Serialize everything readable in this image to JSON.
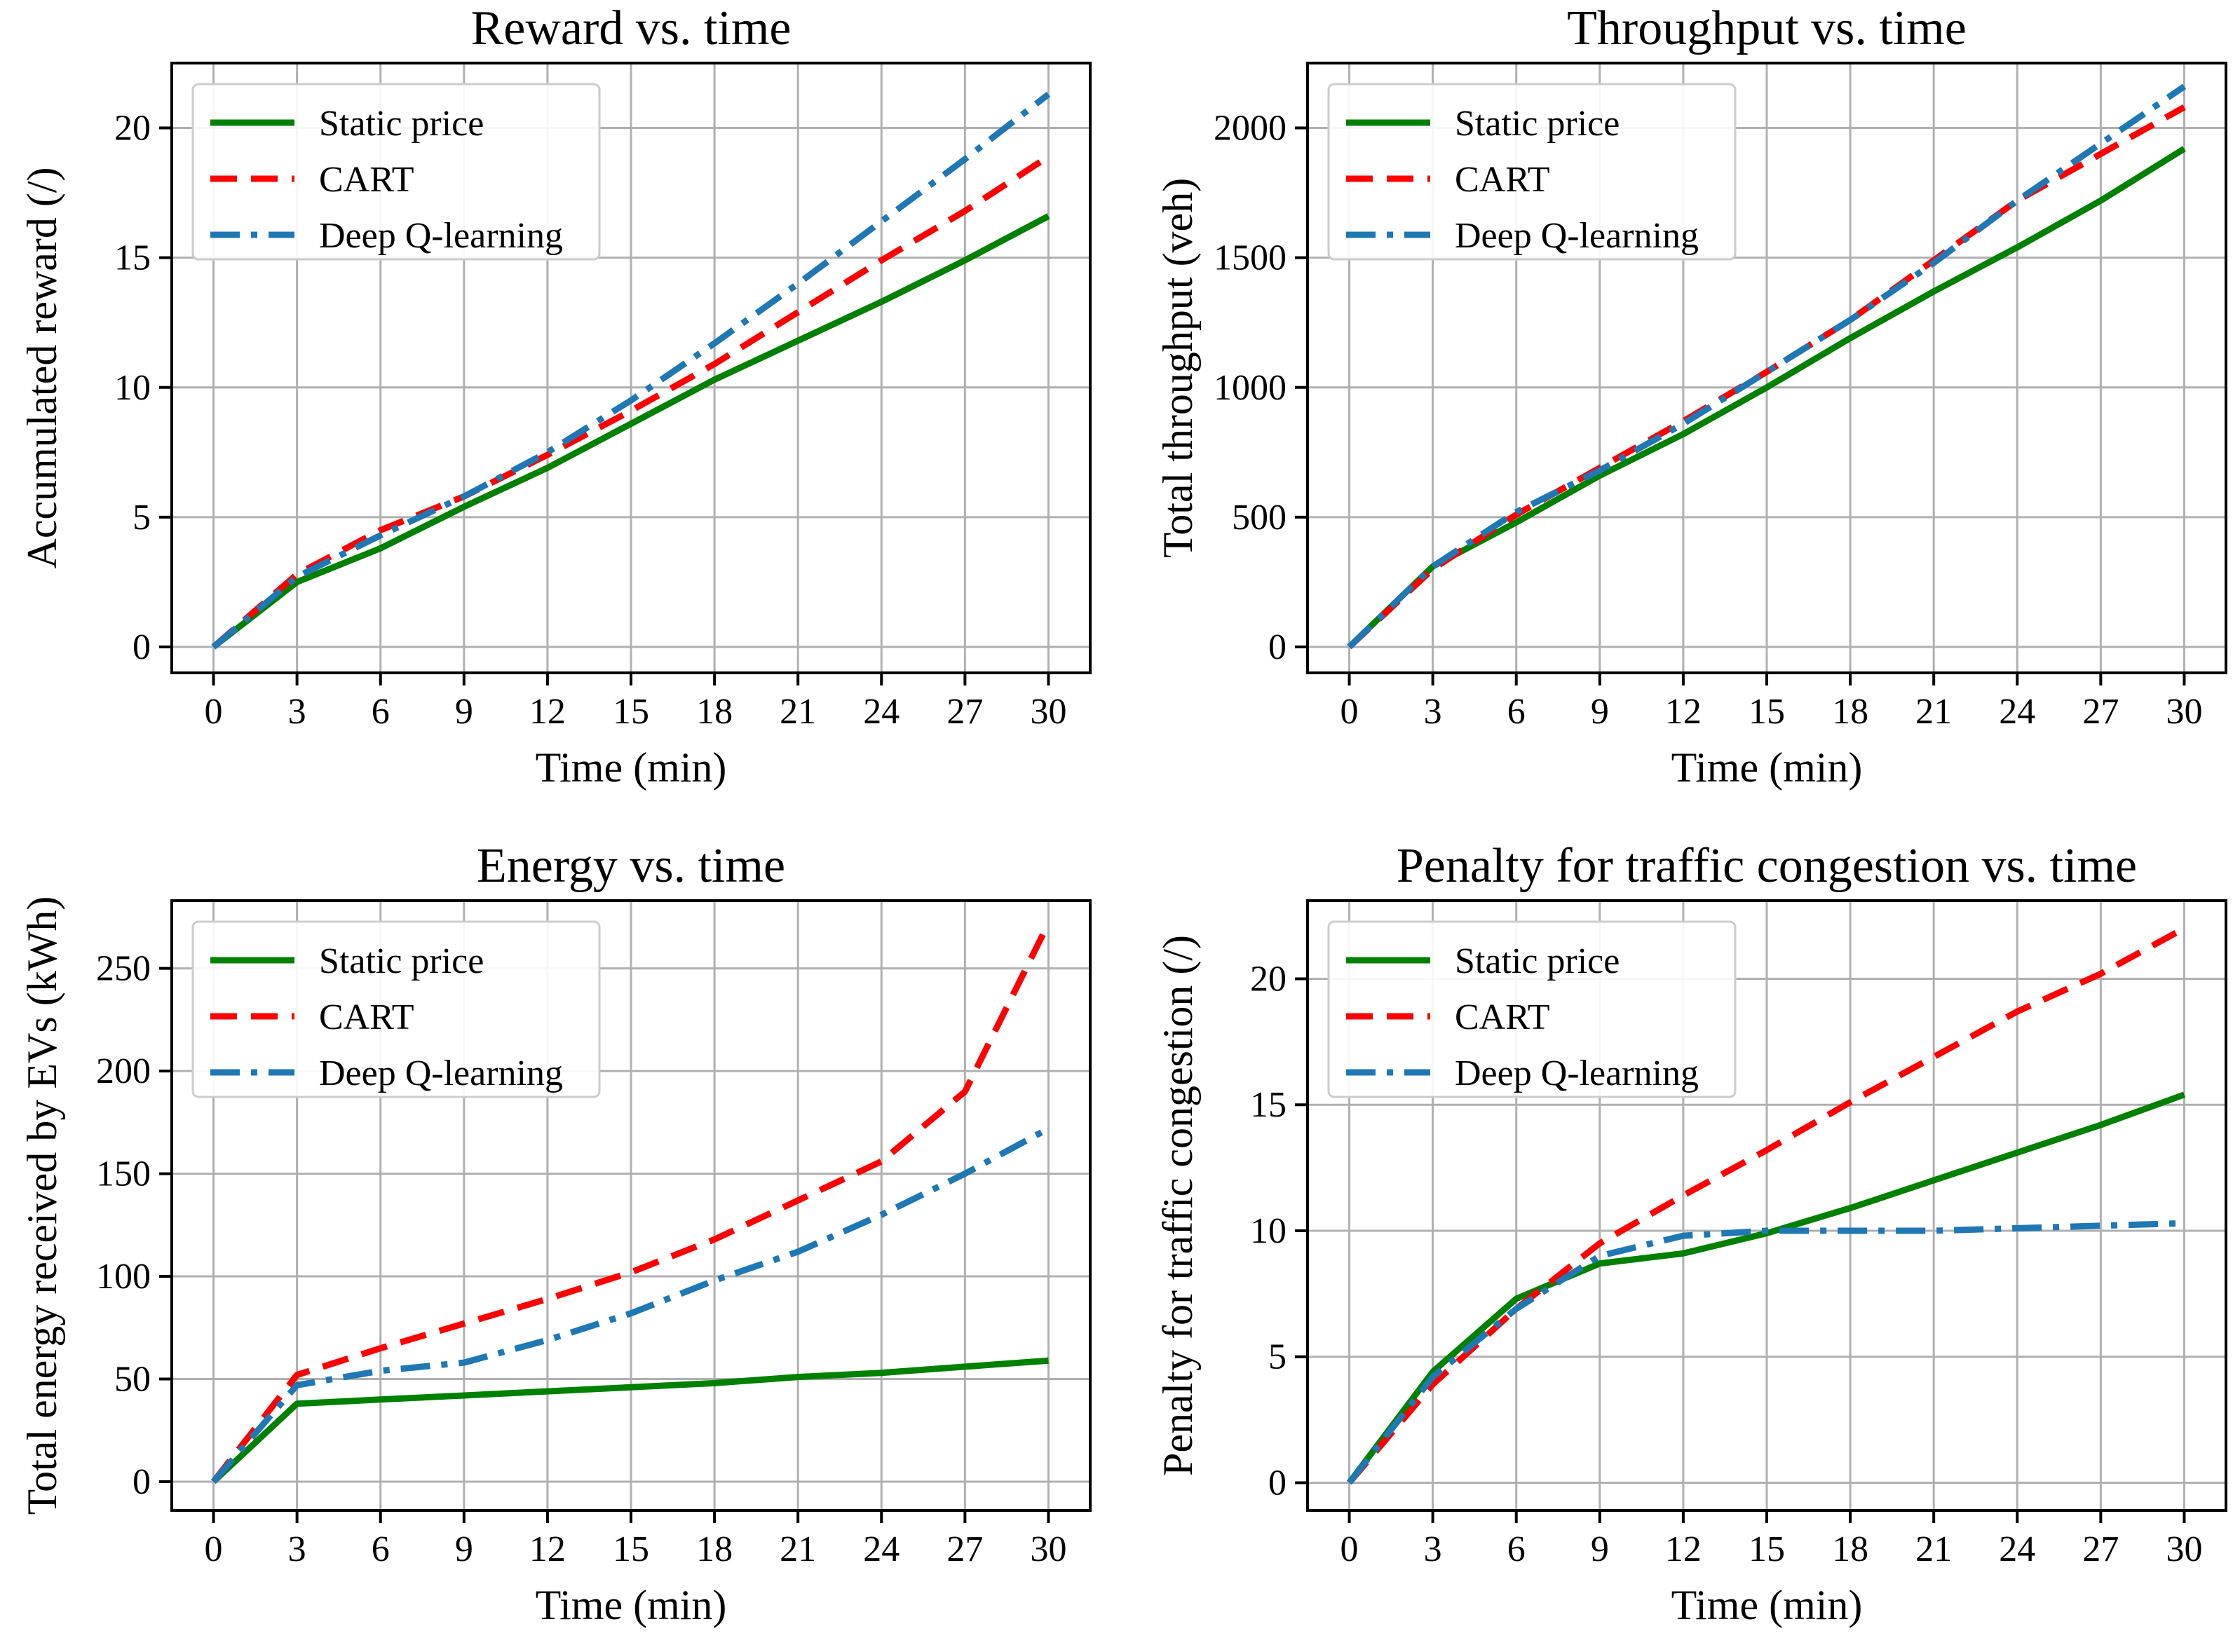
{
  "chart_data": [
    {
      "type": "line",
      "title": "Reward vs. time",
      "xlabel": "Time (min)",
      "ylabel": "Accumulated reward (/)",
      "xlim": [
        -1.5,
        31.5
      ],
      "ylim": [
        -1.0,
        22.5
      ],
      "xticks": [
        0,
        3,
        6,
        9,
        12,
        15,
        18,
        21,
        24,
        27,
        30
      ],
      "yticks": [
        0,
        5,
        10,
        15,
        20
      ],
      "grid": true,
      "legend": "upper left",
      "x": [
        0,
        3,
        6,
        9,
        12,
        15,
        18,
        21,
        24,
        27,
        30
      ],
      "series": [
        {
          "name": "Static price",
          "color": "#008000",
          "style": "solid",
          "values": [
            0,
            2.5,
            3.8,
            5.4,
            6.9,
            8.6,
            10.3,
            11.8,
            13.3,
            14.9,
            16.6
          ]
        },
        {
          "name": "CART",
          "color": "#ff0000",
          "style": "dashed",
          "values": [
            0,
            2.8,
            4.5,
            5.8,
            7.4,
            9.1,
            10.9,
            12.9,
            14.9,
            16.8,
            18.9
          ]
        },
        {
          "name": "Deep Q-learning",
          "color": "#1f77b4",
          "style": "dashdot",
          "values": [
            0,
            2.7,
            4.3,
            5.8,
            7.5,
            9.5,
            11.7,
            14.0,
            16.4,
            18.8,
            21.3
          ]
        }
      ]
    },
    {
      "type": "line",
      "title": "Throughput vs. time",
      "xlabel": "Time (min)",
      "ylabel": "Total throughput (veh)",
      "xlim": [
        -1.5,
        31.5
      ],
      "ylim": [
        -100,
        2250
      ],
      "xticks": [
        0,
        3,
        6,
        9,
        12,
        15,
        18,
        21,
        24,
        27,
        30
      ],
      "yticks": [
        0,
        500,
        1000,
        1500,
        2000
      ],
      "grid": true,
      "legend": "upper left",
      "x": [
        0,
        3,
        6,
        9,
        12,
        15,
        18,
        21,
        24,
        27,
        30
      ],
      "series": [
        {
          "name": "Static price",
          "color": "#008000",
          "style": "solid",
          "values": [
            0,
            310,
            480,
            660,
            820,
            1000,
            1190,
            1370,
            1540,
            1720,
            1920
          ]
        },
        {
          "name": "CART",
          "color": "#ff0000",
          "style": "dashed",
          "values": [
            0,
            300,
            510,
            690,
            870,
            1060,
            1260,
            1490,
            1720,
            1900,
            2080
          ]
        },
        {
          "name": "Deep Q-learning",
          "color": "#1f77b4",
          "style": "dashdot",
          "values": [
            0,
            310,
            520,
            680,
            860,
            1060,
            1260,
            1480,
            1720,
            1940,
            2160
          ]
        }
      ]
    },
    {
      "type": "line",
      "title": "Energy vs. time",
      "xlabel": "Time (min)",
      "ylabel": "Total energy received by EVs (kWh)",
      "xlim": [
        -1.5,
        31.5
      ],
      "ylim": [
        -14,
        283
      ],
      "xticks": [
        0,
        3,
        6,
        9,
        12,
        15,
        18,
        21,
        24,
        27,
        30
      ],
      "yticks": [
        0,
        50,
        100,
        150,
        200,
        250
      ],
      "grid": true,
      "legend": "upper left",
      "x": [
        0,
        3,
        6,
        9,
        12,
        15,
        18,
        21,
        24,
        27,
        30
      ],
      "series": [
        {
          "name": "Static price",
          "color": "#008000",
          "style": "solid",
          "values": [
            0,
            38,
            40,
            42,
            44,
            46,
            48,
            51,
            53,
            56,
            59
          ]
        },
        {
          "name": "CART",
          "color": "#ff0000",
          "style": "dashed",
          "values": [
            0,
            52,
            65,
            77,
            89,
            102,
            118,
            137,
            156,
            190,
            272
          ]
        },
        {
          "name": "Deep Q-learning",
          "color": "#1f77b4",
          "style": "dashdot",
          "values": [
            0,
            47,
            54,
            58,
            69,
            82,
            98,
            112,
            130,
            150,
            172
          ]
        }
      ]
    },
    {
      "type": "line",
      "title": "Penalty for traffic congestion vs. time",
      "xlabel": "Time (min)",
      "ylabel": "Penalty for traffic congestion (/)",
      "xlim": [
        -1.5,
        31.5
      ],
      "ylim": [
        -1.1,
        23.1
      ],
      "xticks": [
        0,
        3,
        6,
        9,
        12,
        15,
        18,
        21,
        24,
        27,
        30
      ],
      "yticks": [
        0,
        5,
        10,
        15,
        20
      ],
      "grid": true,
      "legend": "upper left",
      "x": [
        0,
        3,
        6,
        9,
        12,
        15,
        18,
        21,
        24,
        27,
        30
      ],
      "series": [
        {
          "name": "Static price",
          "color": "#008000",
          "style": "solid",
          "values": [
            0,
            4.4,
            7.3,
            8.7,
            9.1,
            9.9,
            10.9,
            12.0,
            13.1,
            14.2,
            15.4
          ]
        },
        {
          "name": "CART",
          "color": "#ff0000",
          "style": "dashed",
          "values": [
            0,
            3.9,
            6.9,
            9.5,
            11.4,
            13.2,
            15.1,
            16.9,
            18.7,
            20.2,
            22.0
          ]
        },
        {
          "name": "Deep Q-learning",
          "color": "#1f77b4",
          "style": "dashdot",
          "values": [
            0,
            4.2,
            6.9,
            9.0,
            9.8,
            10.0,
            10.0,
            10.0,
            10.1,
            10.2,
            10.3
          ]
        }
      ]
    }
  ]
}
